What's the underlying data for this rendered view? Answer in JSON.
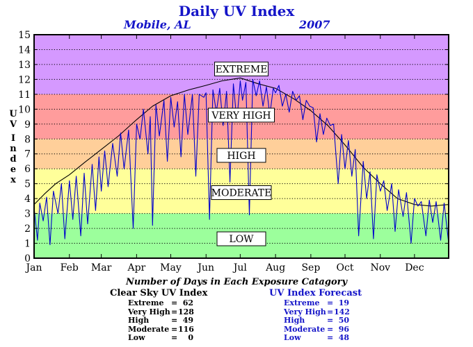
{
  "chart_data": {
    "type": "line",
    "title": "Daily UV Index",
    "subtitle_location": "Mobile, AL",
    "subtitle_year": "2007",
    "ylabel": "UV Index",
    "ylim": [
      0,
      15
    ],
    "yticks": [
      0,
      1,
      2,
      3,
      4,
      5,
      6,
      7,
      8,
      9,
      10,
      11,
      12,
      13,
      14,
      15
    ],
    "xlim": [
      1,
      365
    ],
    "xticks": [
      {
        "label": "Jan",
        "day": 1
      },
      {
        "label": "Feb",
        "day": 32
      },
      {
        "label": "Mar",
        "day": 60
      },
      {
        "label": "Apr",
        "day": 91
      },
      {
        "label": "May",
        "day": 121
      },
      {
        "label": "Jun",
        "day": 152
      },
      {
        "label": "Jul",
        "day": 182
      },
      {
        "label": "Aug",
        "day": 213
      },
      {
        "label": "Sep",
        "day": 244
      },
      {
        "label": "Oct",
        "day": 274
      },
      {
        "label": "Nov",
        "day": 305
      },
      {
        "label": "Dec",
        "day": 335
      }
    ],
    "grid": "horizontal dotted",
    "bands": [
      {
        "name": "Extreme",
        "from": 11,
        "to": 15,
        "color": "#d599ff"
      },
      {
        "name": "Very High",
        "from": 8,
        "to": 11,
        "color": "#ff9c9c"
      },
      {
        "name": "High",
        "from": 6,
        "to": 8,
        "color": "#ffcf9a"
      },
      {
        "name": "Moderate",
        "from": 3,
        "to": 6,
        "color": "#ffff9a"
      },
      {
        "name": "Low",
        "from": 0,
        "to": 3,
        "color": "#9cff9c"
      }
    ],
    "band_labels": [
      {
        "text": "EXTREME",
        "y": 12.7
      },
      {
        "text": "VERY HIGH",
        "y": 9.6
      },
      {
        "text": "HIGH",
        "y": 6.9
      },
      {
        "text": "MODERATE",
        "y": 4.4
      },
      {
        "text": "LOW",
        "y": 1.3
      }
    ],
    "series": [
      {
        "role": "clear-sky",
        "color": "#000000",
        "x": [
          1,
          10,
          20,
          32,
          45,
          60,
          75,
          91,
          105,
          121,
          137,
          152,
          166,
          182,
          198,
          213,
          229,
          244,
          259,
          274,
          290,
          305,
          320,
          335,
          350,
          365
        ],
        "y": [
          3.6,
          4.3,
          5.0,
          5.6,
          6.4,
          7.3,
          8.2,
          9.3,
          10.2,
          10.9,
          11.3,
          11.6,
          11.9,
          12.1,
          11.7,
          11.4,
          10.7,
          9.9,
          8.9,
          7.6,
          6.1,
          5.0,
          4.0,
          3.6,
          3.5,
          3.6
        ]
      },
      {
        "role": "forecast",
        "color": "#0000cc",
        "x": [
          1,
          4,
          6,
          9,
          12,
          15,
          18,
          22,
          25,
          28,
          32,
          35,
          38,
          42,
          45,
          48,
          52,
          55,
          58,
          60,
          63,
          66,
          70,
          74,
          77,
          80,
          84,
          88,
          91,
          94,
          97,
          101,
          103,
          105,
          108,
          111,
          115,
          118,
          121,
          124,
          127,
          130,
          133,
          136,
          140,
          143,
          146,
          150,
          152,
          155,
          158,
          161,
          164,
          167,
          170,
          173,
          176,
          179,
          182,
          184,
          187,
          190,
          193,
          196,
          199,
          202,
          205,
          208,
          211,
          213,
          216,
          219,
          222,
          225,
          228,
          231,
          234,
          237,
          240,
          243,
          246,
          249,
          252,
          255,
          258,
          261,
          264,
          268,
          271,
          274,
          277,
          280,
          283,
          286,
          290,
          293,
          296,
          299,
          302,
          305,
          308,
          311,
          315,
          318,
          321,
          325,
          328,
          332,
          335,
          338,
          341,
          345,
          348,
          351,
          354,
          358,
          361,
          365
        ],
        "y": [
          3.4,
          1.2,
          3.7,
          2.5,
          4.1,
          0.9,
          4.5,
          3.0,
          5.0,
          1.3,
          5.2,
          2.6,
          5.5,
          1.5,
          5.7,
          2.3,
          6.3,
          3.2,
          6.8,
          4.5,
          7.2,
          4.8,
          7.7,
          5.5,
          8.4,
          6.0,
          8.6,
          2.0,
          9.0,
          8.0,
          10.0,
          7.0,
          9.5,
          2.2,
          10.3,
          8.2,
          10.6,
          6.5,
          10.8,
          8.8,
          10.5,
          6.8,
          11.0,
          8.3,
          11.0,
          5.5,
          11.0,
          10.8,
          11.1,
          2.6,
          11.3,
          9.8,
          11.4,
          8.9,
          11.2,
          5.1,
          11.7,
          9.2,
          11.9,
          10.6,
          11.8,
          2.9,
          12.0,
          10.9,
          11.9,
          10.2,
          11.5,
          9.6,
          11.4,
          11.1,
          11.6,
          10.2,
          11.0,
          9.8,
          11.2,
          10.6,
          10.9,
          9.3,
          10.6,
          10.2,
          10.1,
          7.8,
          9.7,
          8.3,
          9.4,
          8.9,
          9.0,
          5.0,
          8.3,
          6.0,
          7.9,
          5.5,
          7.3,
          1.5,
          6.5,
          4.0,
          5.8,
          1.3,
          5.6,
          4.5,
          5.2,
          3.2,
          5.0,
          1.8,
          4.6,
          2.8,
          4.4,
          1.0,
          4.0,
          3.5,
          3.8,
          1.5,
          3.9,
          2.4,
          3.8,
          1.2,
          3.7,
          1.0
        ]
      }
    ],
    "stats": {
      "heading": "Number of Days in Each Exposure Catagory",
      "clear_sky": {
        "title": "Clear Sky UV Index",
        "rows": [
          {
            "label": "Extreme",
            "eq": "=",
            "value": "62"
          },
          {
            "label": "Very High",
            "eq": "=",
            "value": "128"
          },
          {
            "label": "High",
            "eq": "=",
            "value": "49"
          },
          {
            "label": "Moderate",
            "eq": "=",
            "value": "116"
          },
          {
            "label": "Low",
            "eq": "=",
            "value": "0"
          }
        ]
      },
      "forecast": {
        "title": "UV Index Forecast",
        "rows": [
          {
            "label": "Extreme",
            "eq": "=",
            "value": "19"
          },
          {
            "label": "Very High",
            "eq": "=",
            "value": "142"
          },
          {
            "label": "High",
            "eq": "=",
            "value": "50"
          },
          {
            "label": "Moderate",
            "eq": "=",
            "value": "96"
          },
          {
            "label": "Low",
            "eq": "=",
            "value": "48"
          }
        ]
      }
    }
  }
}
